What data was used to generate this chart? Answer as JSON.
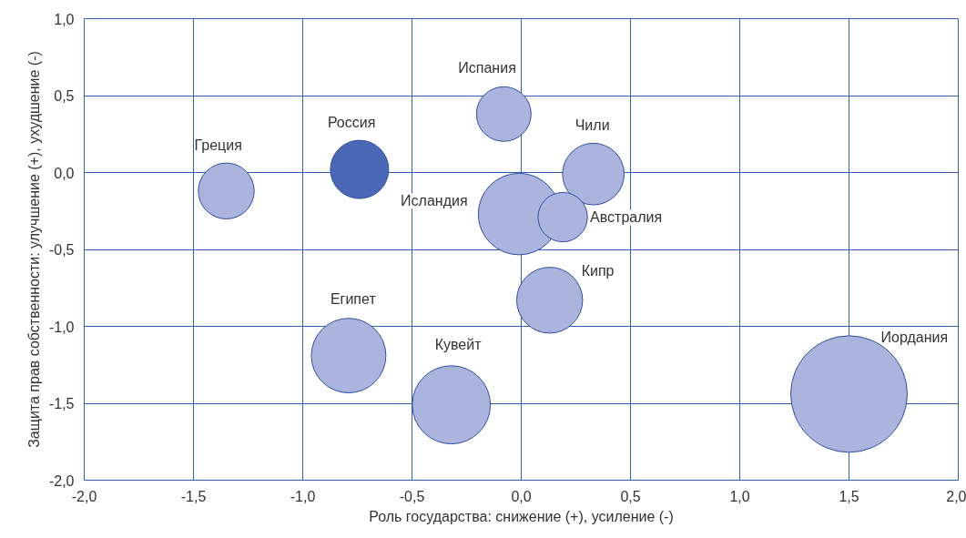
{
  "chart_data": {
    "type": "bubble",
    "xlabel": "Роль государства: снижение (+), усиление (-)",
    "ylabel": "Защита прав собственности: улучшение (+), ухудшение (-)",
    "series": [
      {
        "name": "Греция",
        "color": "#aab4dc",
        "x": [
          -1.35
        ],
        "values": [
          -0.12
        ],
        "sizes": [
          0.23
        ]
      },
      {
        "name": "Россия",
        "color": "#4a68b5",
        "x": [
          -0.74
        ],
        "values": [
          0.02
        ],
        "sizes": [
          0.25
        ]
      },
      {
        "name": "Испания",
        "color": "#aab4dc",
        "x": [
          -0.08
        ],
        "values": [
          0.38
        ],
        "sizes": [
          0.22
        ]
      },
      {
        "name": "Чили",
        "color": "#aab4dc",
        "x": [
          0.33
        ],
        "values": [
          -0.01
        ],
        "sizes": [
          0.28
        ]
      },
      {
        "name": "Исландия",
        "color": "#aab4dc",
        "x": [
          -0.01
        ],
        "values": [
          -0.27
        ],
        "sizes": [
          0.49
        ]
      },
      {
        "name": "Австралия",
        "color": "#aab4dc",
        "x": [
          0.19
        ],
        "values": [
          -0.29
        ],
        "sizes": [
          0.18
        ]
      },
      {
        "name": "Кипр",
        "color": "#aab4dc",
        "x": [
          0.13
        ],
        "values": [
          -0.83
        ],
        "sizes": [
          0.32
        ]
      },
      {
        "name": "Египет",
        "color": "#aab4dc",
        "x": [
          -0.79
        ],
        "values": [
          -1.19
        ],
        "sizes": [
          0.41
        ]
      },
      {
        "name": "Кувейт",
        "color": "#aab4dc",
        "x": [
          -0.32
        ],
        "values": [
          -1.51
        ],
        "sizes": [
          0.45
        ]
      },
      {
        "name": "Иордания",
        "color": "#aab4dc",
        "x": [
          1.5
        ],
        "values": [
          -1.44
        ],
        "sizes": [
          1
        ]
      }
    ],
    "xlim": [
      -2,
      2
    ],
    "ylim": [
      -2,
      1
    ],
    "xticks": [
      {
        "value": -2,
        "label": "-2,0"
      },
      {
        "value": -1.5,
        "label": "-1,5"
      },
      {
        "value": -1,
        "label": "-1,0"
      },
      {
        "value": -0.5,
        "label": "-0,5"
      },
      {
        "value": 0,
        "label": "0,0"
      },
      {
        "value": 0.5,
        "label": "0,5"
      },
      {
        "value": 1,
        "label": "1,0"
      },
      {
        "value": 1.5,
        "label": "1,5"
      },
      {
        "value": 2,
        "label": "2,0"
      }
    ],
    "yticks": [
      {
        "value": -2,
        "label": "-2,0"
      },
      {
        "value": -1.5,
        "label": "-1,5"
      },
      {
        "value": -1,
        "label": "-1,0"
      },
      {
        "value": -0.5,
        "label": "-0,5"
      },
      {
        "value": 0,
        "label": "0,0"
      },
      {
        "value": 0.5,
        "label": "0,5"
      },
      {
        "value": 1,
        "label": "1,0"
      }
    ],
    "grid": true
  }
}
